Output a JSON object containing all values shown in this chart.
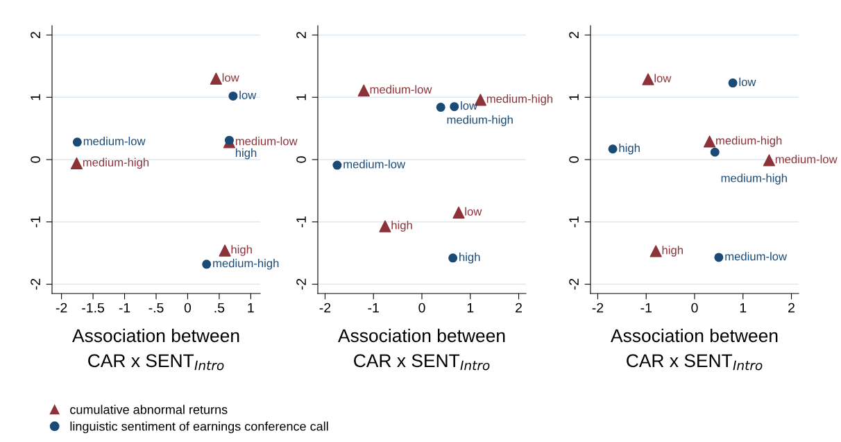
{
  "chart_data": [
    {
      "type": "scatter",
      "xlabel": "Association between\nCAR x SENT$_{Intro}$",
      "grid": "y",
      "legend": "bottom",
      "xlim": [
        -2.15,
        1.15
      ],
      "ylim": [
        -2.15,
        2.15
      ],
      "xticks": [
        -2,
        {
          "value": -1.5,
          "label": "-1.5"
        },
        -1,
        {
          "value": -0.5,
          "label": "-.5"
        },
        0,
        {
          "value": 0.5,
          "label": ".5"
        },
        1
      ],
      "yticks": [
        -2,
        -1,
        0,
        1,
        2
      ],
      "series": [
        {
          "name": "cumulative abnormal returns",
          "color": "#8b3338",
          "marker": "triangle",
          "x": [
            0.45,
            0.66,
            -1.76,
            0.59
          ],
          "values": [
            1.3,
            0.28,
            -0.06,
            -1.46
          ]
        },
        {
          "name": "linguistic sentiment of earnings conference call",
          "color": "#1a4a75",
          "marker": "circle",
          "x": [
            0.72,
            0.66,
            -1.75,
            0.3
          ],
          "values": [
            1.02,
            0.31,
            0.28,
            -1.68
          ]
        }
      ],
      "annotations": [
        {
          "text": "low",
          "x": 0.45,
          "y": 1.3
        },
        {
          "text": "medium-low",
          "x": 0.66,
          "y": 0.28
        },
        {
          "text": "medium-high",
          "x": -1.76,
          "y": -0.06
        },
        {
          "text": "high",
          "x": 0.59,
          "y": -1.46
        },
        {
          "text": "low",
          "x": 0.72,
          "y": 1.02
        },
        {
          "text": "high",
          "x": 0.66,
          "y": 0.31
        },
        {
          "text": "medium-low",
          "x": -1.75,
          "y": 0.28
        },
        {
          "text": "medium-high",
          "x": 0.3,
          "y": -1.68
        }
      ]
    },
    {
      "type": "scatter",
      "xlabel": "Association between\nCAR x SENT$_{Intro}$",
      "grid": "y",
      "xlim": [
        -2.15,
        2.15
      ],
      "ylim": [
        -2.15,
        2.15
      ],
      "xticks": [
        -2,
        -1,
        0,
        1,
        2
      ],
      "yticks": [
        -2,
        -1,
        0,
        1,
        2
      ],
      "series": [
        {
          "color": "#8b3338",
          "marker": "triangle",
          "x": [
            -1.2,
            1.21,
            0.76,
            -0.76
          ],
          "values": [
            1.11,
            0.96,
            -0.85,
            -1.07
          ]
        },
        {
          "color": "#1a4a75",
          "marker": "circle",
          "x": [
            -1.75,
            0.39,
            0.67,
            0.64
          ],
          "values": [
            -0.09,
            0.84,
            0.85,
            -1.58
          ]
        }
      ],
      "annotations": [
        {
          "text": "medium-low",
          "x": -1.2,
          "y": 1.11
        },
        {
          "text": "medium-high",
          "x": 1.21,
          "y": 0.96
        },
        {
          "text": "low",
          "x": 0.76,
          "y": -0.85
        },
        {
          "text": "high",
          "x": -0.76,
          "y": -1.07
        },
        {
          "text": "medium-low",
          "x": -1.75,
          "y": -0.09
        },
        {
          "text": "medium-high",
          "x": 0.39,
          "y": 0.84
        },
        {
          "text": "low",
          "x": 0.67,
          "y": 0.85
        },
        {
          "text": "high",
          "x": 0.64,
          "y": -1.58
        }
      ]
    },
    {
      "type": "scatter",
      "xlabel": "Association between\nCAR x SENT$_{Intro}$",
      "grid": "y",
      "xlim": [
        -2.15,
        2.15
      ],
      "ylim": [
        -2.15,
        2.15
      ],
      "xticks": [
        -2,
        -1,
        0,
        1,
        2
      ],
      "yticks": [
        -2,
        -1,
        0,
        1,
        2
      ],
      "series": [
        {
          "color": "#8b3338",
          "marker": "triangle",
          "x": [
            -0.96,
            0.31,
            1.54,
            -0.8
          ],
          "values": [
            1.29,
            0.29,
            -0.01,
            -1.47
          ]
        },
        {
          "color": "#1a4a75",
          "marker": "circle",
          "x": [
            0.79,
            -1.69,
            0.42,
            0.5
          ],
          "values": [
            1.23,
            0.17,
            0.12,
            -1.57
          ]
        }
      ],
      "annotations": [
        {
          "text": "low",
          "x": -0.96,
          "y": 1.29
        },
        {
          "text": "medium-high",
          "x": 0.31,
          "y": 0.29
        },
        {
          "text": "medium-low",
          "x": 1.54,
          "y": -0.01
        },
        {
          "text": "high",
          "x": -0.8,
          "y": -1.47
        },
        {
          "text": "low",
          "x": 0.79,
          "y": 1.23
        },
        {
          "text": "high",
          "x": -1.69,
          "y": 0.17
        },
        {
          "text": "medium-high",
          "x": 0.42,
          "y": 0.12
        },
        {
          "text": "medium-low",
          "x": 0.5,
          "y": -1.57
        }
      ]
    }
  ]
}
